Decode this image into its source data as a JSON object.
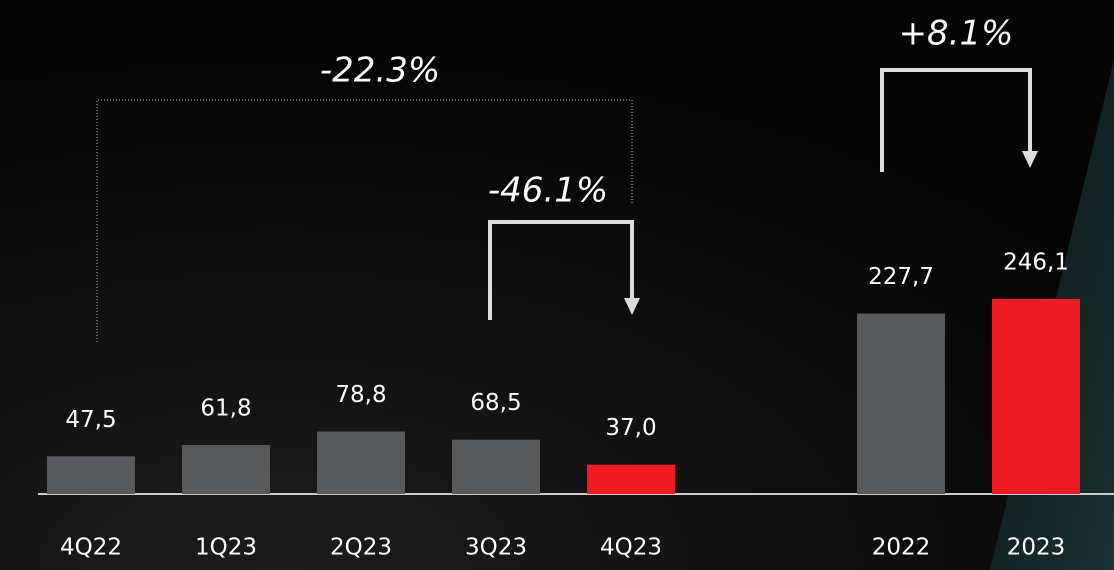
{
  "chart_data": {
    "type": "bar",
    "categories": [
      "4Q22",
      "1Q23",
      "2Q23",
      "3Q23",
      "4Q23",
      "2022",
      "2023"
    ],
    "values": [
      47.5,
      61.8,
      78.8,
      68.5,
      37.0,
      227.7,
      246.1
    ],
    "value_labels": [
      "47,5",
      "61,8",
      "78,8",
      "68,5",
      "37,0",
      "227,7",
      "246,1"
    ],
    "colors": [
      "#58595b",
      "#58595b",
      "#58595b",
      "#58595b",
      "#ed1c24",
      "#58595b",
      "#ed1c24"
    ],
    "annotations": [
      "-22.3%",
      "-46.1%",
      "+8.1%"
    ]
  }
}
